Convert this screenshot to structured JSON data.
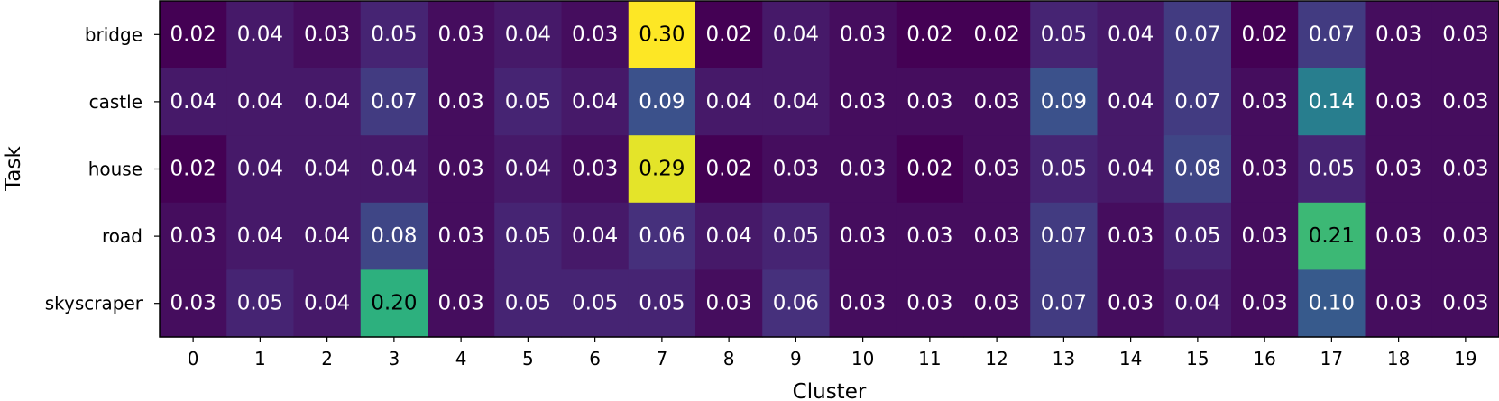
{
  "chart_data": {
    "type": "heatmap",
    "xlabel": "Cluster",
    "ylabel": "Task",
    "x_categories": [
      "0",
      "1",
      "2",
      "3",
      "4",
      "5",
      "6",
      "7",
      "8",
      "9",
      "10",
      "11",
      "12",
      "13",
      "14",
      "15",
      "16",
      "17",
      "18",
      "19"
    ],
    "y_categories": [
      "bridge",
      "castle",
      "house",
      "road",
      "skyscraper"
    ],
    "values": [
      [
        0.02,
        0.04,
        0.03,
        0.05,
        0.03,
        0.04,
        0.03,
        0.3,
        0.02,
        0.04,
        0.03,
        0.02,
        0.02,
        0.05,
        0.04,
        0.07,
        0.02,
        0.07,
        0.03,
        0.03
      ],
      [
        0.04,
        0.04,
        0.04,
        0.07,
        0.03,
        0.05,
        0.04,
        0.09,
        0.04,
        0.04,
        0.03,
        0.03,
        0.03,
        0.09,
        0.04,
        0.07,
        0.03,
        0.14,
        0.03,
        0.03
      ],
      [
        0.02,
        0.04,
        0.04,
        0.04,
        0.03,
        0.04,
        0.03,
        0.29,
        0.02,
        0.03,
        0.03,
        0.02,
        0.03,
        0.05,
        0.04,
        0.08,
        0.03,
        0.05,
        0.03,
        0.03
      ],
      [
        0.03,
        0.04,
        0.04,
        0.08,
        0.03,
        0.05,
        0.04,
        0.06,
        0.04,
        0.05,
        0.03,
        0.03,
        0.03,
        0.07,
        0.03,
        0.05,
        0.03,
        0.21,
        0.03,
        0.03
      ],
      [
        0.03,
        0.05,
        0.04,
        0.2,
        0.03,
        0.05,
        0.05,
        0.05,
        0.03,
        0.06,
        0.03,
        0.03,
        0.03,
        0.07,
        0.03,
        0.04,
        0.03,
        0.1,
        0.03,
        0.03
      ]
    ],
    "value_format": "0.00",
    "colormap": "viridis",
    "color_range": [
      0.02,
      0.3
    ],
    "grid": false,
    "legend": "none"
  }
}
